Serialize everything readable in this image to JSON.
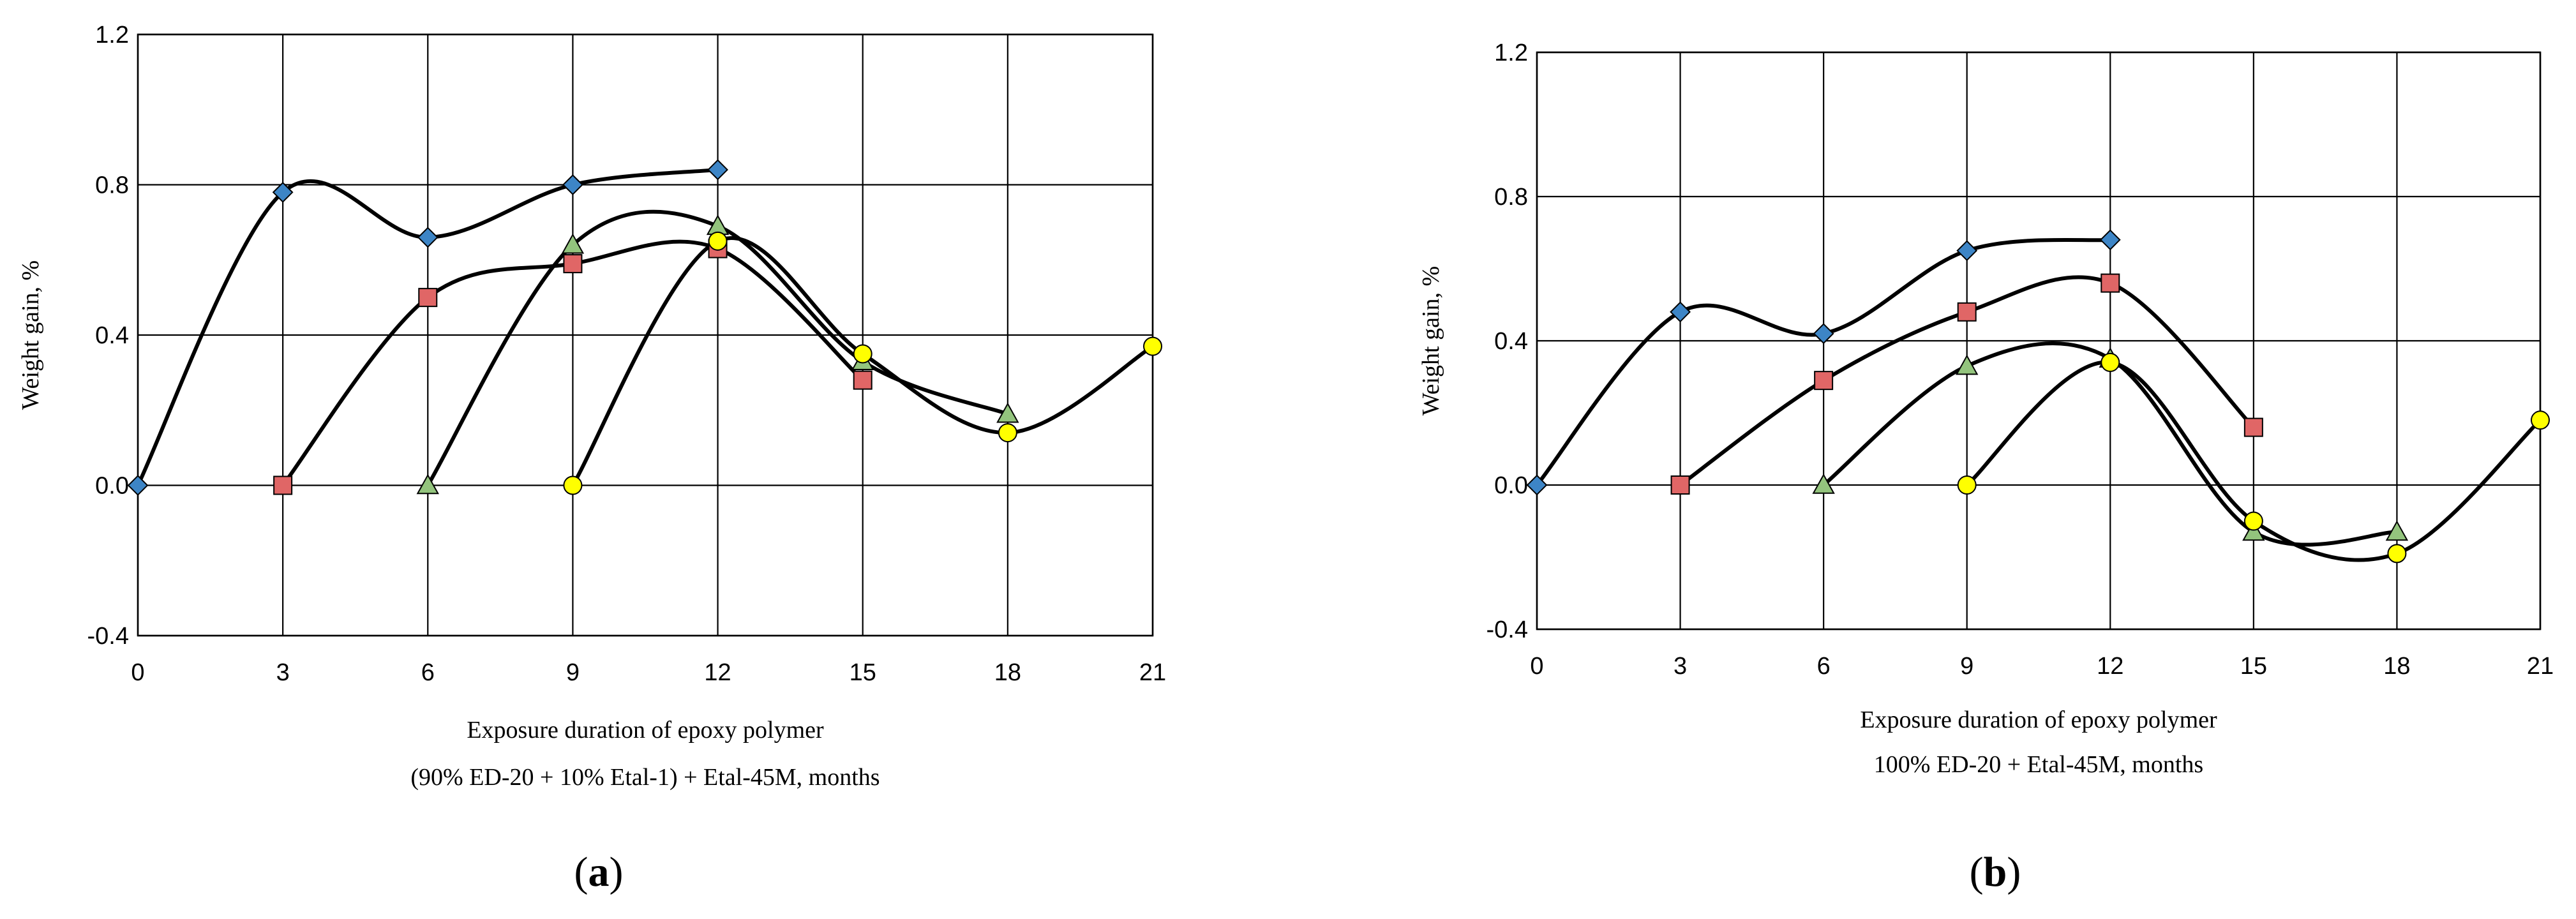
{
  "chart_data": [
    {
      "type": "line",
      "panel_label": "a",
      "xlabel_line1": "Exposure duration of epoxy polymer",
      "xlabel_line2": "(90% ED-20 + 10% Etal-1) + Etal-45M,  months",
      "ylabel": "Weight gain, %",
      "xlim": [
        0,
        21
      ],
      "ylim": [
        -0.4,
        1.2
      ],
      "x_ticks": [
        0,
        3,
        6,
        9,
        12,
        15,
        18,
        21
      ],
      "x_tick_labels": [
        "0",
        "3",
        "6",
        "9",
        "12",
        "15",
        "18",
        "21"
      ],
      "y_ticks": [
        -0.4,
        0.0,
        0.4,
        0.8,
        1.2
      ],
      "y_tick_labels": [
        "-0.4",
        "0.0",
        "0.4",
        "0.8",
        "1.2"
      ],
      "grid": true,
      "smooth": true,
      "series": [
        {
          "marker": "diamond",
          "color": "#3d85c6",
          "x": [
            0,
            3,
            6,
            9,
            12
          ],
          "y": [
            0.0,
            0.78,
            0.66,
            0.8,
            0.84
          ]
        },
        {
          "marker": "square",
          "color": "#e06666",
          "x": [
            3,
            6,
            9,
            12,
            15
          ],
          "y": [
            0.0,
            0.5,
            0.59,
            0.63,
            0.28
          ]
        },
        {
          "marker": "triangle",
          "color": "#93c47d",
          "x": [
            6,
            9,
            12,
            15,
            18
          ],
          "y": [
            0.0,
            0.64,
            0.69,
            0.33,
            0.19
          ]
        },
        {
          "marker": "circle",
          "color": "#ffff00",
          "x": [
            9,
            12,
            15,
            18,
            21
          ],
          "y": [
            0.0,
            0.65,
            0.35,
            0.14,
            0.37
          ]
        }
      ]
    },
    {
      "type": "line",
      "panel_label": "b",
      "xlabel_line1": "Exposure duration of epoxy polymer",
      "xlabel_line2": "100% ED-20 + Etal-45M,  months",
      "ylabel": "Weight gain, %",
      "xlim": [
        0,
        21
      ],
      "ylim": [
        -0.4,
        1.2
      ],
      "x_ticks": [
        0,
        3,
        6,
        9,
        12,
        15,
        18,
        21
      ],
      "x_tick_labels": [
        "0",
        "3",
        "6",
        "9",
        "12",
        "15",
        "18",
        "21"
      ],
      "y_ticks": [
        -0.4,
        0.0,
        0.4,
        0.8,
        1.2
      ],
      "y_tick_labels": [
        "-0.4",
        "0.0",
        "0.4",
        "0.8",
        "1.2"
      ],
      "grid": true,
      "smooth": true,
      "series": [
        {
          "marker": "diamond",
          "color": "#3d85c6",
          "x": [
            0,
            3,
            6,
            9,
            12
          ],
          "y": [
            0.0,
            0.48,
            0.42,
            0.65,
            0.68
          ]
        },
        {
          "marker": "square",
          "color": "#e06666",
          "x": [
            3,
            6,
            9,
            12,
            15
          ],
          "y": [
            0.0,
            0.29,
            0.48,
            0.56,
            0.16
          ]
        },
        {
          "marker": "triangle",
          "color": "#93c47d",
          "x": [
            6,
            9,
            12,
            15,
            18
          ],
          "y": [
            0.0,
            0.33,
            0.35,
            -0.13,
            -0.13
          ]
        },
        {
          "marker": "circle",
          "color": "#ffff00",
          "x": [
            9,
            12,
            15,
            18,
            21
          ],
          "y": [
            0.0,
            0.34,
            -0.1,
            -0.19,
            0.18
          ]
        }
      ]
    }
  ]
}
